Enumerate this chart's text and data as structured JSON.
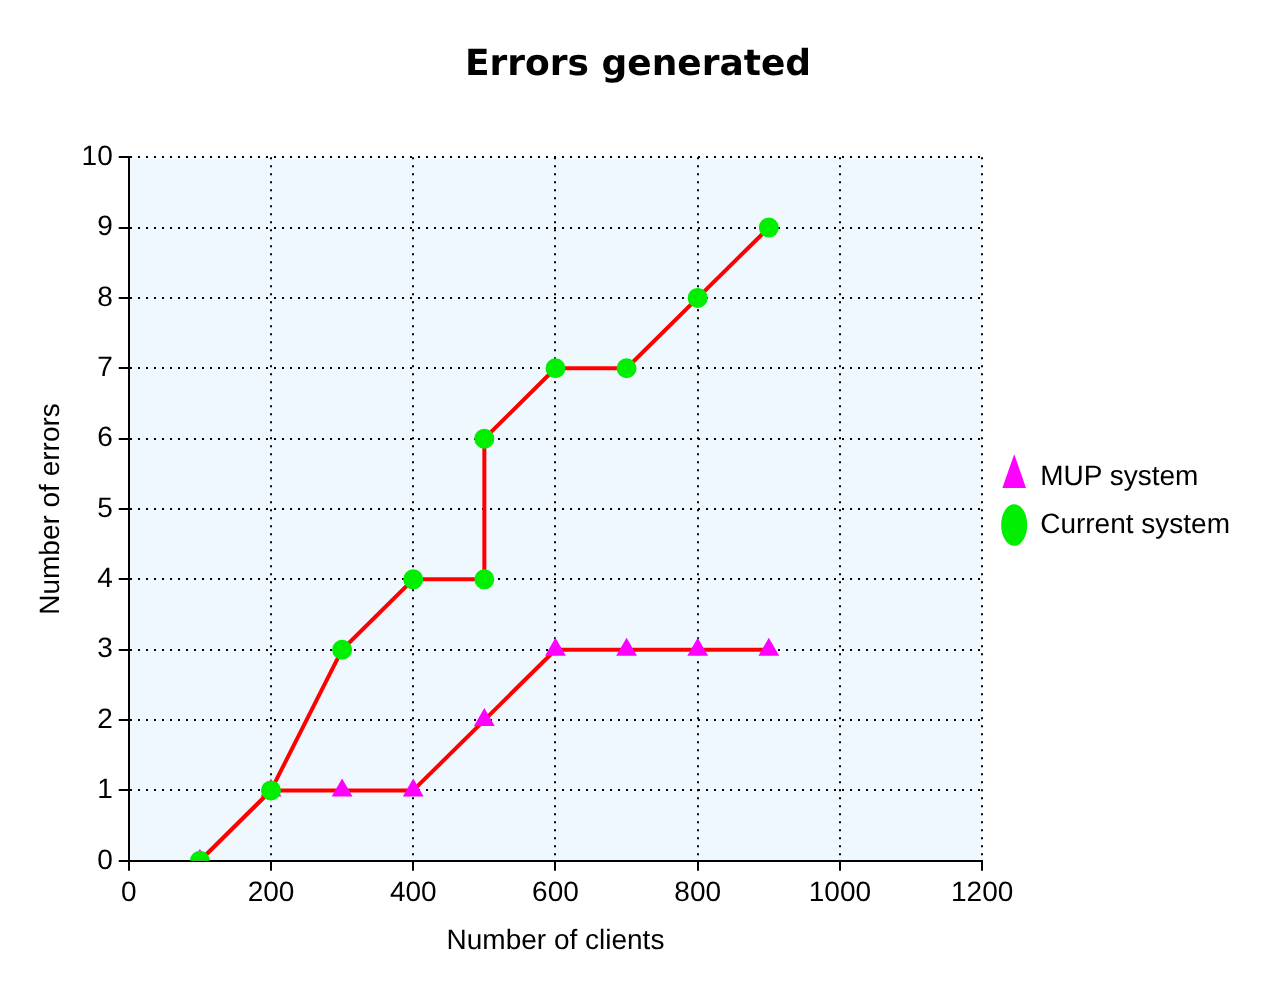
{
  "chart_data": {
    "type": "line",
    "title": "Errors generated",
    "xlabel": "Number of clients",
    "ylabel": "Number of errors",
    "xlim": [
      0,
      1200
    ],
    "xticks": [
      0,
      200,
      400,
      600,
      800,
      1000,
      1200
    ],
    "ylim": [
      0,
      10
    ],
    "yticks": [
      0,
      1,
      2,
      3,
      4,
      5,
      6,
      7,
      8,
      9,
      10
    ],
    "grid": true,
    "legend": "right",
    "line_style": "solid",
    "series": [
      {
        "name": "MUP system",
        "color": "#ff0000",
        "colors": [
          "#ff00ff",
          "#ff00ff",
          "#ff00ff",
          "#ff00ff",
          "#ff00ff",
          "#ff00ff",
          "#ff00ff",
          "#ff00ff",
          "#ff00ff"
        ],
        "marker": "triangle",
        "x": [
          100,
          200,
          300,
          400,
          500,
          600,
          700,
          800,
          900
        ],
        "values": [
          0,
          1,
          1,
          1,
          2,
          3,
          3,
          3,
          3
        ]
      },
      {
        "name": "Current system",
        "color": "#ff0000",
        "colors": [
          "#00ee00",
          "#00ee00",
          "#00ee00",
          "#00ee00",
          "#00ee00",
          "#00ee00",
          "#00ee00",
          "#00ee00",
          "#00ee00",
          "#00ee00"
        ],
        "marker": "circle",
        "x": [
          100,
          200,
          300,
          400,
          500,
          500,
          600,
          700,
          800,
          900
        ],
        "values": [
          0,
          1,
          3,
          4,
          4,
          6,
          7,
          7,
          8,
          9
        ]
      }
    ]
  }
}
